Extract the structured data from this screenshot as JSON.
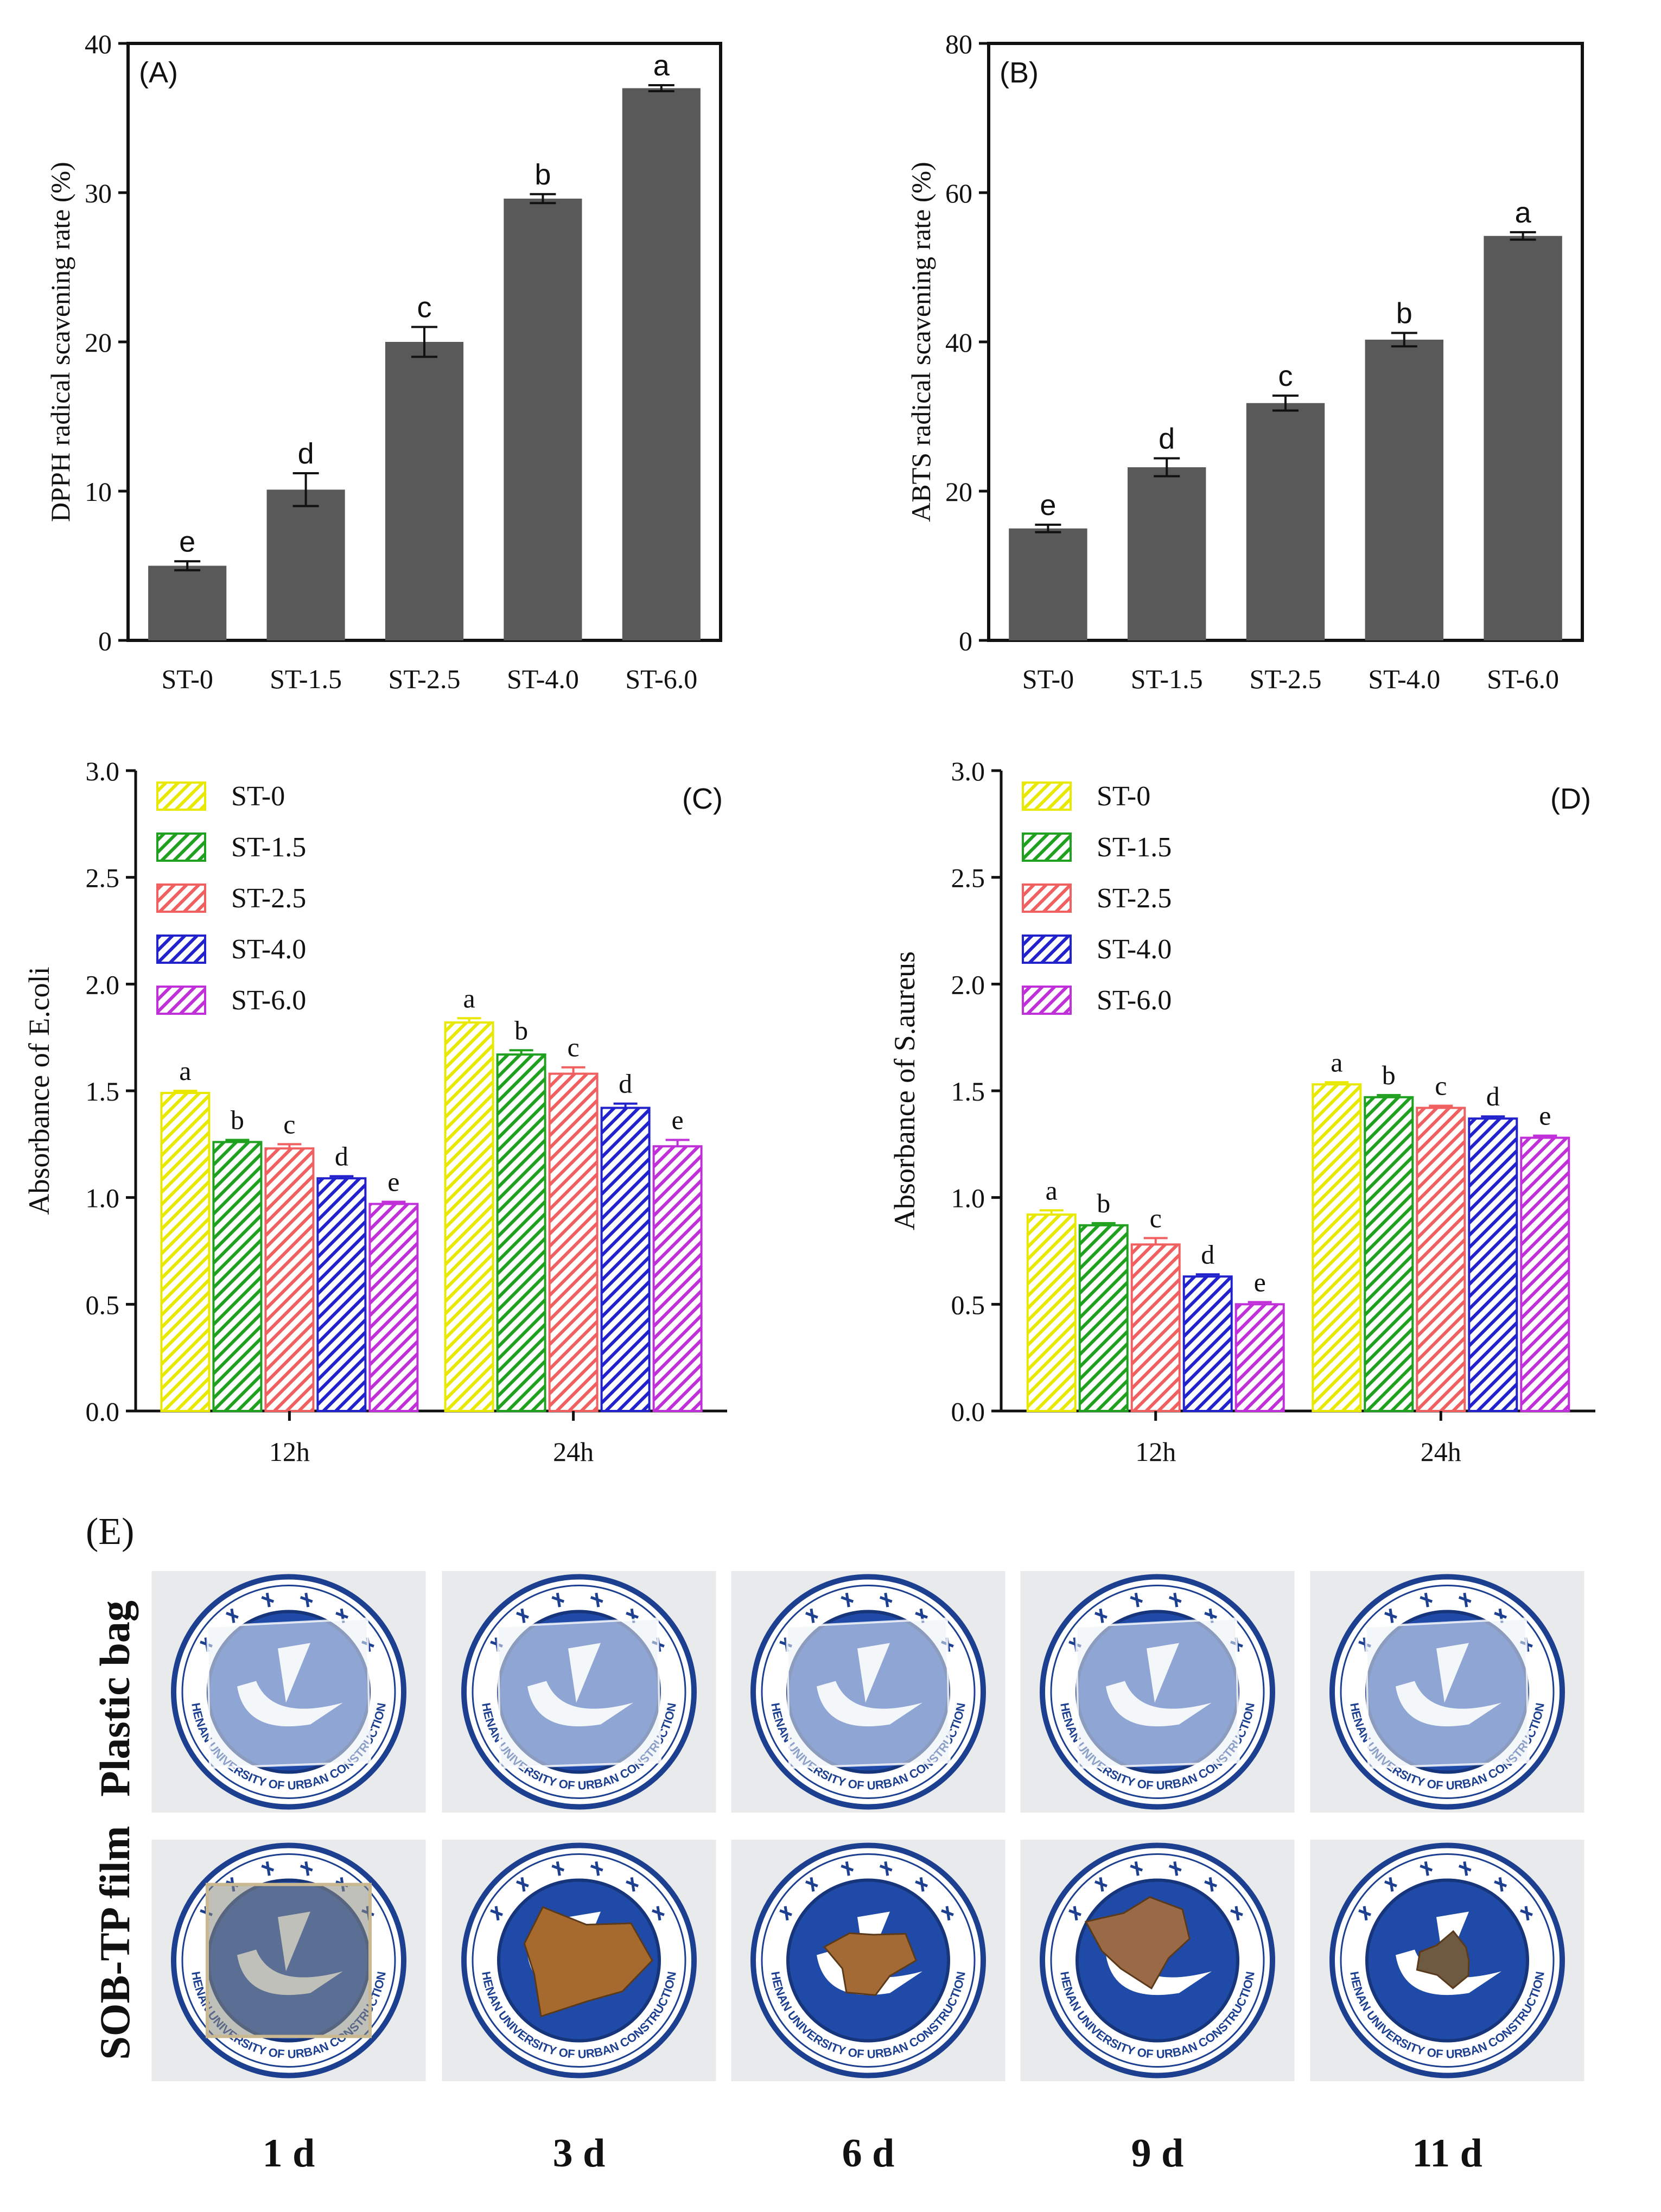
{
  "chart_data": [
    {
      "type": "bar",
      "panel": "(A)",
      "categories": [
        "ST-0",
        "ST-1.5",
        "ST-2.5",
        "ST-4.0",
        "ST-6.0"
      ],
      "values": [
        5.0,
        10.1,
        20.0,
        29.6,
        37.0
      ],
      "errors": [
        0.3,
        1.1,
        1.0,
        0.3,
        0.2
      ],
      "letters": [
        "e",
        "d",
        "c",
        "b",
        "a"
      ],
      "ylabel": "DPPH radical scavening rate (%)",
      "xlabel": "",
      "ylim": [
        0,
        40
      ],
      "yticks": [
        "0",
        "10",
        "20",
        "30",
        "40"
      ],
      "color": "#595959"
    },
    {
      "type": "bar",
      "panel": "(B)",
      "categories": [
        "ST-0",
        "ST-1.5",
        "ST-2.5",
        "ST-4.0",
        "ST-6.0"
      ],
      "values": [
        15.0,
        23.2,
        31.8,
        40.3,
        54.2
      ],
      "errors": [
        0.5,
        1.2,
        1.0,
        0.9,
        0.5
      ],
      "letters": [
        "e",
        "d",
        "c",
        "b",
        "a"
      ],
      "ylabel": "ABTS radical scavening rate (%)",
      "xlabel": "",
      "ylim": [
        0,
        80
      ],
      "yticks": [
        "0",
        "20",
        "40",
        "60",
        "80"
      ],
      "color": "#595959"
    },
    {
      "type": "bar",
      "panel": "(C)",
      "categories": [
        "12h",
        "24h"
      ],
      "series": [
        {
          "name": "ST-0",
          "values": [
            1.49,
            1.82
          ],
          "errors": [
            0.01,
            0.02
          ],
          "letters": [
            "a",
            "a"
          ],
          "color": "#e8e800"
        },
        {
          "name": "ST-1.5",
          "values": [
            1.26,
            1.67
          ],
          "errors": [
            0.01,
            0.02
          ],
          "letters": [
            "b",
            "b"
          ],
          "color": "#1fa01f"
        },
        {
          "name": "ST-2.5",
          "values": [
            1.23,
            1.58
          ],
          "errors": [
            0.02,
            0.03
          ],
          "letters": [
            "c",
            "c"
          ],
          "color": "#f06060"
        },
        {
          "name": "ST-4.0",
          "values": [
            1.09,
            1.42
          ],
          "errors": [
            0.01,
            0.02
          ],
          "letters": [
            "d",
            "d"
          ],
          "color": "#2222cc"
        },
        {
          "name": "ST-6.0",
          "values": [
            0.97,
            1.24
          ],
          "errors": [
            0.01,
            0.03
          ],
          "letters": [
            "e",
            "e"
          ],
          "color": "#c030d8"
        }
      ],
      "ylabel": "Absorbance of E.coli",
      "xlabel": "",
      "ylim": [
        0,
        3.0
      ],
      "yticks": [
        "0.0",
        "0.5",
        "1.0",
        "1.5",
        "2.0",
        "2.5",
        "3.0"
      ],
      "legend": "top-left"
    },
    {
      "type": "bar",
      "panel": "(D)",
      "categories": [
        "12h",
        "24h"
      ],
      "series": [
        {
          "name": "ST-0",
          "values": [
            0.92,
            1.53
          ],
          "errors": [
            0.02,
            0.01
          ],
          "letters": [
            "a",
            "a"
          ],
          "color": "#e8e800"
        },
        {
          "name": "ST-1.5",
          "values": [
            0.87,
            1.47
          ],
          "errors": [
            0.01,
            0.01
          ],
          "letters": [
            "b",
            "b"
          ],
          "color": "#1fa01f"
        },
        {
          "name": "ST-2.5",
          "values": [
            0.78,
            1.42
          ],
          "errors": [
            0.03,
            0.01
          ],
          "letters": [
            "c",
            "c"
          ],
          "color": "#f06060"
        },
        {
          "name": "ST-4.0",
          "values": [
            0.63,
            1.37
          ],
          "errors": [
            0.01,
            0.01
          ],
          "letters": [
            "d",
            "d"
          ],
          "color": "#2222cc"
        },
        {
          "name": "ST-6.0",
          "values": [
            0.5,
            1.28
          ],
          "errors": [
            0.01,
            0.01
          ],
          "letters": [
            "e",
            "e"
          ],
          "color": "#c030d8"
        }
      ],
      "ylabel": "Absorbance of S.aureus",
      "xlabel": "",
      "ylim": [
        0,
        3.0
      ],
      "yticks": [
        "0.0",
        "0.5",
        "1.0",
        "1.5",
        "2.0",
        "2.5",
        "3.0"
      ],
      "legend": "top-left"
    }
  ],
  "photo_panel": {
    "label": "(E)",
    "rows": [
      "Plastic bag",
      "SOB-TP film"
    ],
    "columns": [
      "1 d",
      "3 d",
      "6 d",
      "9 d",
      "11 d"
    ],
    "logo_text": "HENAN UNIVERSITY OF URBAN CONSTRUCTION"
  }
}
